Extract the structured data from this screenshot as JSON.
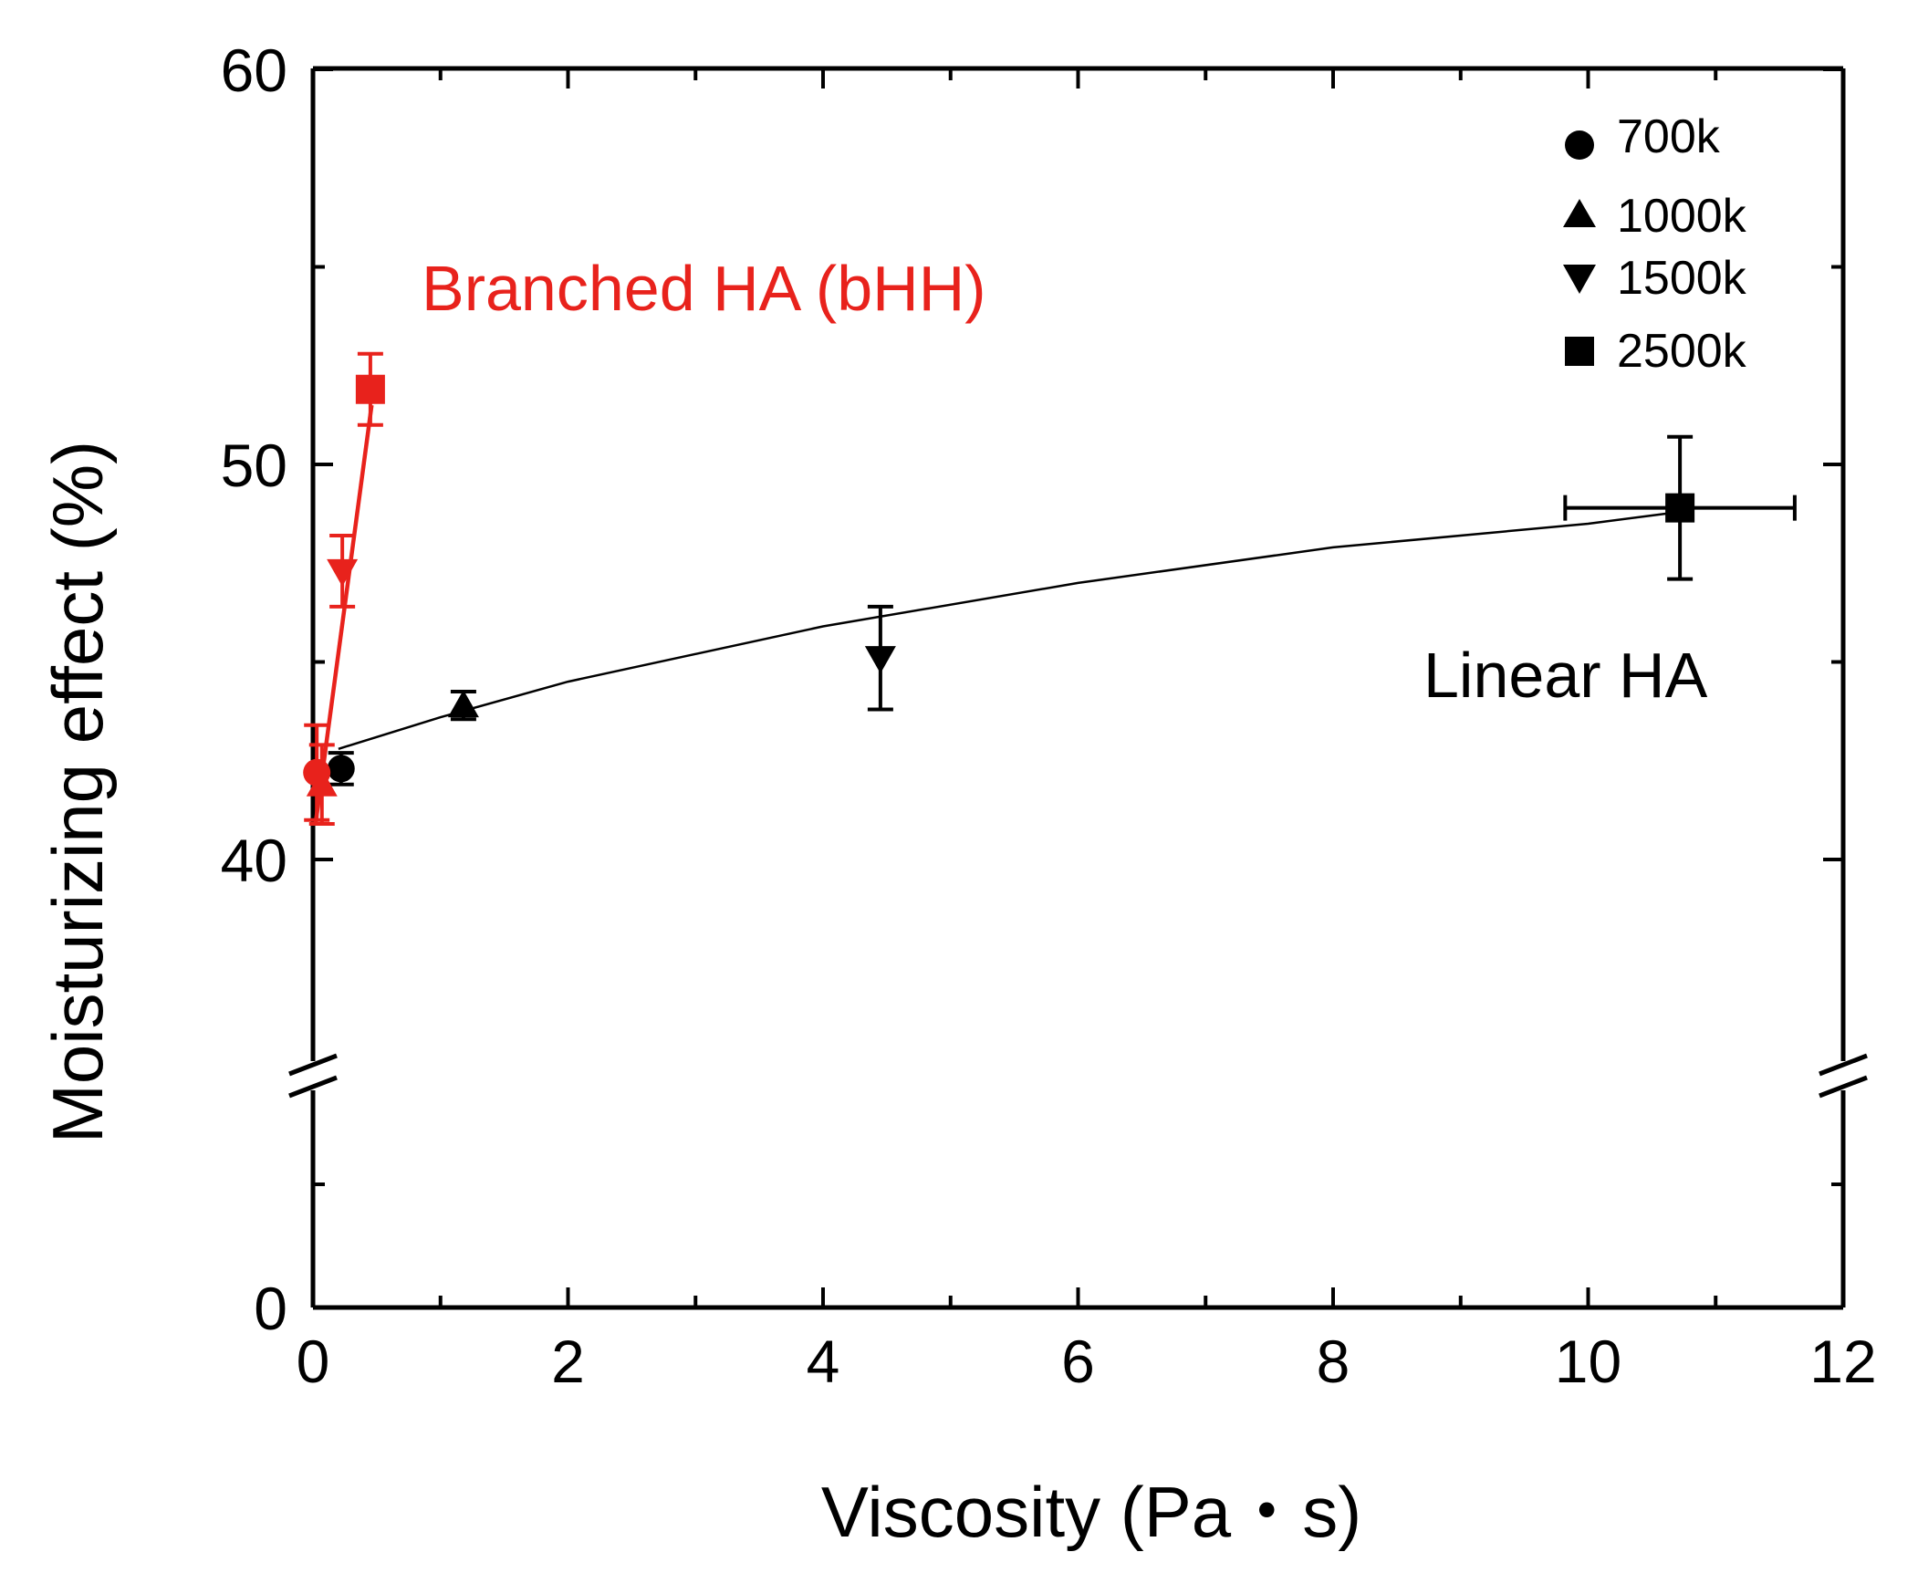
{
  "chart_data": {
    "type": "scatter",
    "xlabel": "Viscosity (Pa・s)",
    "ylabel": "Moisturizing effect (%)",
    "xlim": [
      0,
      12
    ],
    "ylim": [
      0,
      60
    ],
    "y_axis_break": [
      0,
      40
    ],
    "x_ticks": [
      "0",
      "2",
      "4",
      "6",
      "8",
      "10",
      "12"
    ],
    "y_ticks": [
      "0",
      "40",
      "50",
      "60"
    ],
    "legend": [
      {
        "label": "700k",
        "marker": "circle"
      },
      {
        "label": "1000k",
        "marker": "triangle-up"
      },
      {
        "label": "1500k",
        "marker": "triangle-down"
      },
      {
        "label": "2500k",
        "marker": "square"
      }
    ],
    "annotations": [
      {
        "text": "Branched HA (bHH)",
        "color": "#e8221c"
      },
      {
        "text": "Linear HA",
        "color": "#000000"
      }
    ],
    "series": [
      {
        "name": "Linear HA",
        "color": "#000000",
        "points": [
          {
            "x": 0.22,
            "y": 42.3,
            "yerr": 0.4,
            "xerr": 0,
            "marker": "circle"
          },
          {
            "x": 1.18,
            "y": 43.9,
            "yerr": 0.35,
            "xerr": 0,
            "marker": "triangle-up"
          },
          {
            "x": 4.45,
            "y": 45.1,
            "yerr": 1.3,
            "xerr": 0,
            "marker": "triangle-down"
          },
          {
            "x": 10.72,
            "y": 48.9,
            "yerr": 1.8,
            "xerr": 0.9,
            "marker": "square"
          }
        ],
        "fit_line": [
          [
            0.2,
            42.8
          ],
          [
            1.0,
            43.6
          ],
          [
            2.0,
            44.5
          ],
          [
            4.0,
            45.9
          ],
          [
            6.0,
            47.0
          ],
          [
            8.0,
            47.9
          ],
          [
            10.0,
            48.5
          ],
          [
            10.72,
            48.8
          ]
        ]
      },
      {
        "name": "Branched HA (bHH)",
        "color": "#e8221c",
        "points": [
          {
            "x": 0.03,
            "y": 42.2,
            "yerr": 1.2,
            "xerr": 0,
            "marker": "circle"
          },
          {
            "x": 0.07,
            "y": 41.9,
            "yerr": 1.0,
            "xerr": 0,
            "marker": "triangle-up"
          },
          {
            "x": 0.23,
            "y": 47.3,
            "yerr": 0.9,
            "xerr": 0,
            "marker": "triangle-down"
          },
          {
            "x": 0.45,
            "y": 51.9,
            "yerr": 0.9,
            "xerr": 0,
            "marker": "square"
          }
        ],
        "fit_line": [
          [
            0.02,
            40.9
          ],
          [
            0.46,
            51.5
          ]
        ]
      }
    ]
  }
}
